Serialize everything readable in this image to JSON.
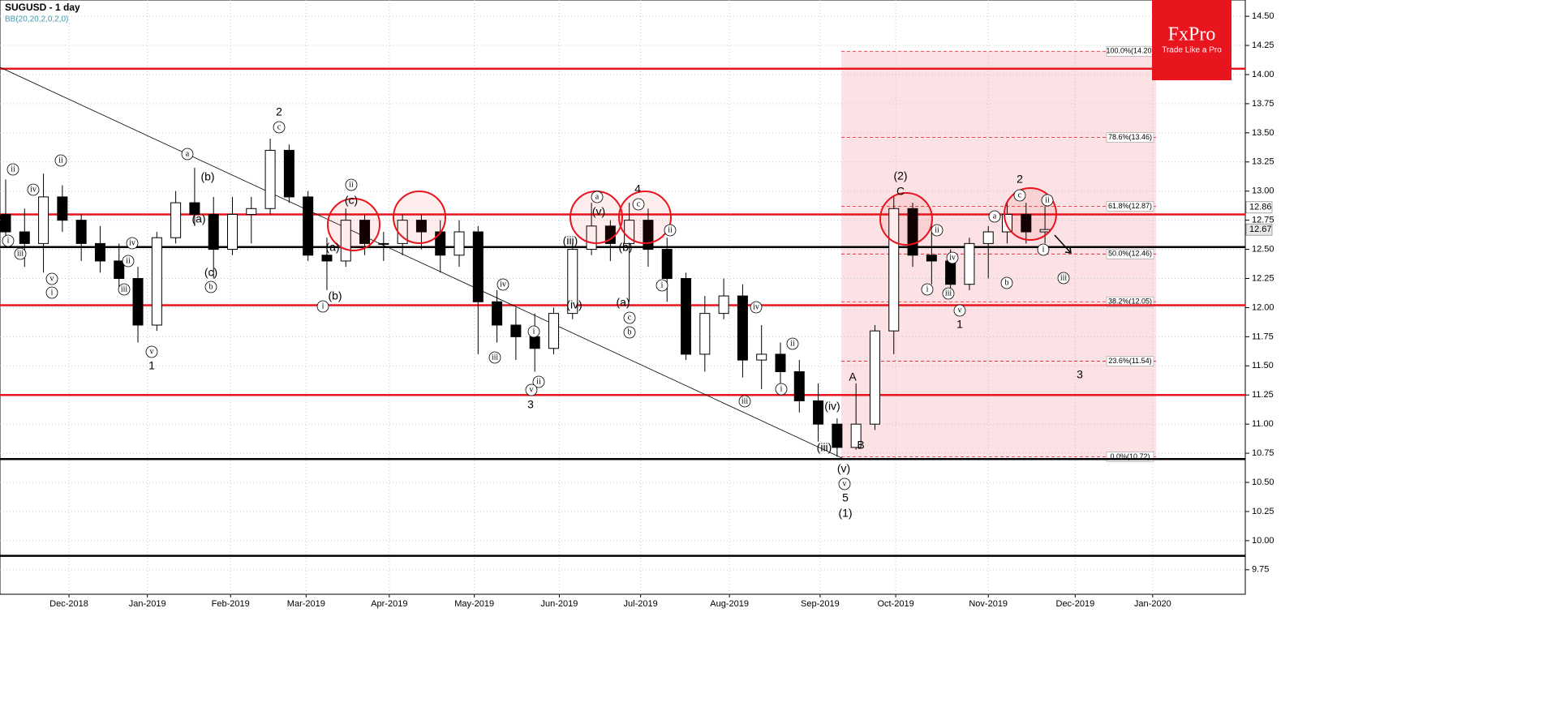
{
  "chart_data": {
    "type": "candlestick",
    "title": "SUGUSD - 1 day",
    "subtitle": "BB(20,20,2,0,2,0)",
    "brand": "FxPro",
    "tagline": "Trade Like a Pro",
    "open": [
      12.8,
      12.65,
      12.55,
      12.95,
      12.75,
      12.55,
      12.4,
      12.25,
      11.85,
      12.6,
      12.9,
      12.8,
      12.5,
      12.8,
      12.85,
      13.35,
      12.95,
      12.45,
      12.4,
      12.75,
      12.55,
      12.55,
      12.75,
      12.65,
      12.45,
      12.65,
      12.05,
      11.85,
      11.75,
      11.65,
      11.95,
      12.5,
      12.7,
      12.55,
      12.75,
      12.5,
      12.25,
      11.6,
      11.95,
      12.1,
      11.55,
      11.6,
      11.45,
      11.2,
      11.0,
      10.8,
      11.0,
      11.8,
      12.85,
      12.45,
      12.4,
      12.2,
      12.55,
      12.65,
      12.8,
      12.65
    ],
    "high": [
      13.1,
      12.85,
      13.15,
      13.05,
      12.8,
      12.7,
      12.55,
      12.35,
      12.65,
      13.0,
      13.2,
      12.95,
      12.95,
      12.95,
      13.45,
      13.4,
      13.0,
      12.6,
      12.85,
      12.8,
      12.65,
      12.8,
      12.8,
      12.75,
      12.75,
      12.7,
      12.15,
      12.0,
      11.95,
      12.0,
      12.55,
      12.9,
      12.75,
      12.9,
      12.85,
      12.6,
      12.3,
      12.1,
      12.25,
      12.2,
      11.85,
      11.7,
      11.55,
      11.35,
      11.05,
      11.35,
      11.85,
      12.95,
      12.9,
      12.75,
      12.5,
      12.6,
      12.7,
      12.9,
      12.9,
      12.87
    ],
    "low": [
      12.55,
      12.35,
      12.3,
      12.65,
      12.4,
      12.3,
      12.15,
      11.7,
      11.8,
      12.55,
      12.7,
      12.25,
      12.45,
      12.55,
      12.8,
      12.9,
      12.4,
      12.15,
      12.35,
      12.45,
      12.4,
      12.45,
      12.5,
      12.3,
      12.35,
      11.6,
      11.7,
      11.55,
      11.45,
      11.6,
      11.9,
      12.45,
      12.4,
      12.05,
      12.35,
      12.05,
      11.55,
      11.45,
      11.9,
      11.4,
      11.3,
      11.35,
      11.1,
      10.85,
      10.72,
      10.78,
      10.95,
      11.6,
      12.35,
      12.2,
      12.1,
      12.15,
      12.25,
      12.55,
      12.55,
      12.55
    ],
    "close": [
      12.65,
      12.55,
      12.95,
      12.75,
      12.55,
      12.4,
      12.25,
      11.85,
      12.6,
      12.9,
      12.8,
      12.5,
      12.8,
      12.85,
      13.35,
      12.95,
      12.45,
      12.4,
      12.75,
      12.55,
      12.55,
      12.75,
      12.65,
      12.45,
      12.65,
      12.05,
      11.85,
      11.75,
      11.65,
      11.95,
      12.5,
      12.7,
      12.55,
      12.75,
      12.5,
      12.25,
      11.6,
      11.95,
      12.1,
      11.55,
      11.6,
      11.45,
      11.2,
      11.0,
      10.8,
      11.0,
      11.8,
      12.85,
      12.45,
      12.4,
      12.2,
      12.55,
      12.65,
      12.8,
      12.65,
      12.67
    ],
    "xlim": [
      -0.3,
      65.6
    ],
    "xticks": [
      {
        "value": 3.35,
        "label": "Dec-2018"
      },
      {
        "value": 7.5,
        "label": "Jan-2019"
      },
      {
        "value": 11.9,
        "label": "Feb-2019"
      },
      {
        "value": 15.9,
        "label": "Mar-2019"
      },
      {
        "value": 20.3,
        "label": "Apr-2019"
      },
      {
        "value": 24.8,
        "label": "May-2019"
      },
      {
        "value": 29.3,
        "label": "Jun-2019"
      },
      {
        "value": 33.6,
        "label": "Jul-2019"
      },
      {
        "value": 38.3,
        "label": "Aug-2019"
      },
      {
        "value": 43.1,
        "label": "Sep-2019"
      },
      {
        "value": 47.1,
        "label": "Oct-2019"
      },
      {
        "value": 52,
        "label": "Nov-2019"
      },
      {
        "value": 56.6,
        "label": "Dec-2019"
      },
      {
        "value": 60.7,
        "label": "Jan-2020"
      }
    ],
    "ylim": [
      9.54,
      14.64
    ],
    "yticks": [
      9.75,
      {
        "value": 10,
        "label": "10.00"
      },
      10.25,
      {
        "value": 10.5,
        "label": "10.50"
      },
      10.75,
      {
        "value": 11,
        "label": "11.00"
      },
      11.25,
      {
        "value": 11.5,
        "label": "11.50"
      },
      11.75,
      {
        "value": 12,
        "label": "12.00"
      },
      12.25,
      {
        "value": 12.5,
        "label": "12.50"
      },
      12.75,
      {
        "value": 13,
        "label": "13.00"
      },
      13.25,
      {
        "value": 13.5,
        "label": "13.50"
      },
      13.75,
      {
        "value": 14,
        "label": "14.00"
      },
      14.25,
      {
        "value": 14.5,
        "label": "14.50"
      }
    ],
    "grid": true,
    "levels": [
      {
        "value": 14.05,
        "color": "#e8141e"
      },
      {
        "value": 12.8,
        "color": "#e8141e"
      },
      {
        "value": 12.02,
        "color": "#e8141e"
      },
      {
        "value": 11.25,
        "color": "#e8141e"
      },
      {
        "value": 12.52,
        "color": "#000000"
      },
      {
        "value": 10.7,
        "color": "#000000"
      },
      {
        "value": 9.87,
        "color": "#000000"
      }
    ],
    "fib_levels": [
      {
        "value": 14.2,
        "label": "100.0%(14.20)"
      },
      {
        "value": 13.46,
        "label": "78.6%(13.46)"
      },
      {
        "value": 12.87,
        "label": "61.8%(12.87)"
      },
      {
        "value": 12.46,
        "label": "50.0%(12.46)"
      },
      {
        "value": 12.05,
        "label": "38.2%(12.05)"
      },
      {
        "value": 11.54,
        "label": "23.6%(11.54)"
      },
      {
        "value": 10.72,
        "label": "0.0%(10.72)"
      }
    ],
    "marker_price": 12.86,
    "last_price": 12.67,
    "annotations": [
      "ii",
      "i",
      "iii",
      "iv",
      "v",
      "i",
      "ii",
      "iv",
      "ii",
      "iii",
      "v",
      "1",
      "a",
      "(b)",
      "(a)",
      "(c)",
      "b",
      "2",
      "c",
      "ii",
      "(c)",
      "(a)",
      "(b)",
      "i",
      "iv",
      "i",
      "iii",
      "ii",
      "v",
      "3",
      "(iii)",
      "(iv)",
      "a",
      "(v)",
      "4",
      "c",
      "ii",
      "(b)",
      "(a)",
      "c",
      "b",
      "i",
      "iv",
      "ii",
      "i",
      "iii",
      "(iv)",
      "(iii)",
      "(v)",
      "v",
      "5",
      "(1)",
      "A",
      "B",
      "(2)",
      "C",
      "ii",
      "i",
      "iv",
      "iii",
      "v",
      "1",
      "a",
      "b",
      "2",
      "c",
      "ii",
      "i",
      "iii",
      "3"
    ]
  }
}
